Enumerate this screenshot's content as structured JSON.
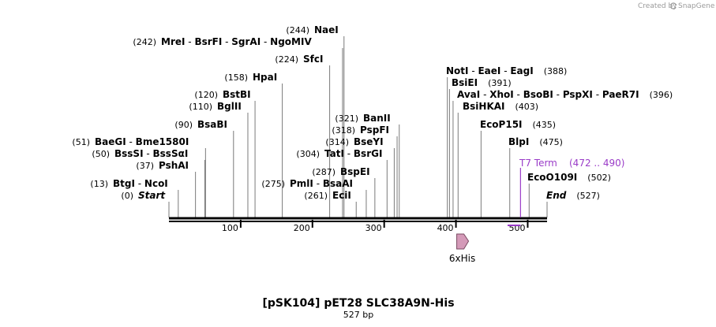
{
  "credit": "Created by",
  "credit_brand": "SnapGene",
  "title": "[pSK104] pET28 SLC38A9N-His",
  "subtitle": "527 bp",
  "length": 527,
  "ticks": [
    {
      "pos": 100,
      "label": "100"
    },
    {
      "pos": 200,
      "label": "200"
    },
    {
      "pos": 300,
      "label": "300"
    },
    {
      "pos": 400,
      "label": "400"
    },
    {
      "pos": 500,
      "label": "500"
    }
  ],
  "sites": [
    {
      "pos": 244,
      "pos_text": "(244)",
      "names": [
        "NaeI"
      ]
    },
    {
      "pos": 242,
      "pos_text": "(242)",
      "names": [
        "MreI",
        "BsrFI",
        "SgrAI",
        "NgoMIV"
      ]
    },
    {
      "pos": 224,
      "pos_text": "(224)",
      "names": [
        "SfcI"
      ]
    },
    {
      "pos": 158,
      "pos_text": "(158)",
      "names": [
        "HpaI"
      ]
    },
    {
      "pos": 120,
      "pos_text": "(120)",
      "names": [
        "BstBI"
      ]
    },
    {
      "pos": 110,
      "pos_text": "(110)",
      "names": [
        "BglII"
      ]
    },
    {
      "pos": 90,
      "pos_text": "(90)",
      "names": [
        "BsaBI"
      ]
    },
    {
      "pos": 51,
      "pos_text": "(51)",
      "names": [
        "BaeGI",
        "Bme1580I"
      ]
    },
    {
      "pos": 50,
      "pos_text": "(50)",
      "names": [
        "BssSI",
        "BssSαI"
      ]
    },
    {
      "pos": 37,
      "pos_text": "(37)",
      "names": [
        "PshAI"
      ]
    },
    {
      "pos": 13,
      "pos_text": "(13)",
      "names": [
        "BtgI",
        "NcoI"
      ]
    },
    {
      "pos": 0,
      "pos_text": "(0)",
      "names": [
        "Start"
      ]
    },
    {
      "pos": 321,
      "pos_text": "(321)",
      "names": [
        "BanII"
      ]
    },
    {
      "pos": 318,
      "pos_text": "(318)",
      "names": [
        "PspFI"
      ]
    },
    {
      "pos": 314,
      "pos_text": "(314)",
      "names": [
        "BseYI"
      ]
    },
    {
      "pos": 304,
      "pos_text": "(304)",
      "names": [
        "TatI",
        "BsrGI"
      ]
    },
    {
      "pos": 287,
      "pos_text": "(287)",
      "names": [
        "BspEI"
      ]
    },
    {
      "pos": 275,
      "pos_text": "(275)",
      "names": [
        "PmlI",
        "BsaAI"
      ]
    },
    {
      "pos": 261,
      "pos_text": "(261)",
      "names": [
        "EciI"
      ]
    },
    {
      "pos": 388,
      "pos_text": "(388)",
      "names": [
        "NotI",
        "EaeI",
        "EagI"
      ]
    },
    {
      "pos": 391,
      "pos_text": "(391)",
      "names": [
        "BsiEI"
      ]
    },
    {
      "pos": 396,
      "pos_text": "(396)",
      "names": [
        "AvaI",
        "XhoI",
        "BsoBI",
        "PspXI",
        "PaeR7I"
      ]
    },
    {
      "pos": 403,
      "pos_text": "(403)",
      "names": [
        "BsiHKAI"
      ]
    },
    {
      "pos": 435,
      "pos_text": "(435)",
      "names": [
        "EcoP15I"
      ]
    },
    {
      "pos": 475,
      "pos_text": "(475)",
      "names": [
        "BlpI"
      ]
    },
    {
      "pos": 502,
      "pos_text": "(502)",
      "names": [
        "EcoO109I"
      ]
    },
    {
      "pos": 527,
      "pos_text": "(527)",
      "names": [
        "End"
      ]
    }
  ],
  "terminator": {
    "name": "T7 Term",
    "range_text": "(472 .. 490)",
    "start": 472,
    "end": 490,
    "color": "#9a3cc8"
  },
  "feature": {
    "name": "6xHis",
    "start": 400,
    "end": 417,
    "color": "#d49ab8",
    "stroke": "#7a4a62"
  }
}
